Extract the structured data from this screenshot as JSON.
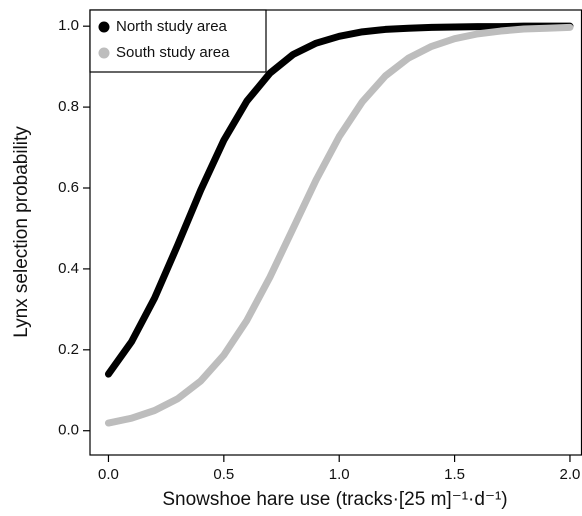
{
  "chart_data": {
    "type": "line",
    "x_label": "Snowshoe hare use (tracks·[25 m]⁻¹·d⁻¹)",
    "y_label": "Lynx selection probability",
    "x": [
      0,
      0.1,
      0.2,
      0.3,
      0.4,
      0.5,
      0.6,
      0.7,
      0.8,
      0.9,
      1.0,
      1.1,
      1.2,
      1.3,
      1.4,
      1.5,
      1.6,
      1.7,
      1.8,
      1.9,
      2.0
    ],
    "series": [
      {
        "name": "North study area",
        "color": "#000000",
        "values": [
          0.14,
          0.22,
          0.328,
          0.459,
          0.595,
          0.718,
          0.815,
          0.884,
          0.93,
          0.958,
          0.975,
          0.986,
          0.992,
          0.995,
          0.997,
          0.998,
          0.999,
          0.999,
          1.0,
          1.0,
          1.0
        ]
      },
      {
        "name": "South study area",
        "color": "#bdbdbd",
        "values": [
          0.019,
          0.031,
          0.05,
          0.079,
          0.123,
          0.187,
          0.273,
          0.38,
          0.5,
          0.62,
          0.727,
          0.813,
          0.877,
          0.921,
          0.95,
          0.969,
          0.981,
          0.988,
          0.993,
          0.995,
          0.997
        ]
      }
    ],
    "xlim": [
      -0.08,
      2.05
    ],
    "ylim": [
      -0.06,
      1.04
    ],
    "xticks": [
      {
        "value": 0,
        "label": "0.0"
      },
      0.5,
      {
        "value": 1,
        "label": "1.0"
      },
      1.5,
      {
        "value": 2,
        "label": "2.0"
      }
    ],
    "yticks": [
      {
        "value": 0,
        "label": "0.0"
      },
      0.2,
      0.4,
      0.6,
      0.8,
      {
        "value": 1,
        "label": "1.0"
      }
    ],
    "legend": "upper left",
    "grid": false
  }
}
